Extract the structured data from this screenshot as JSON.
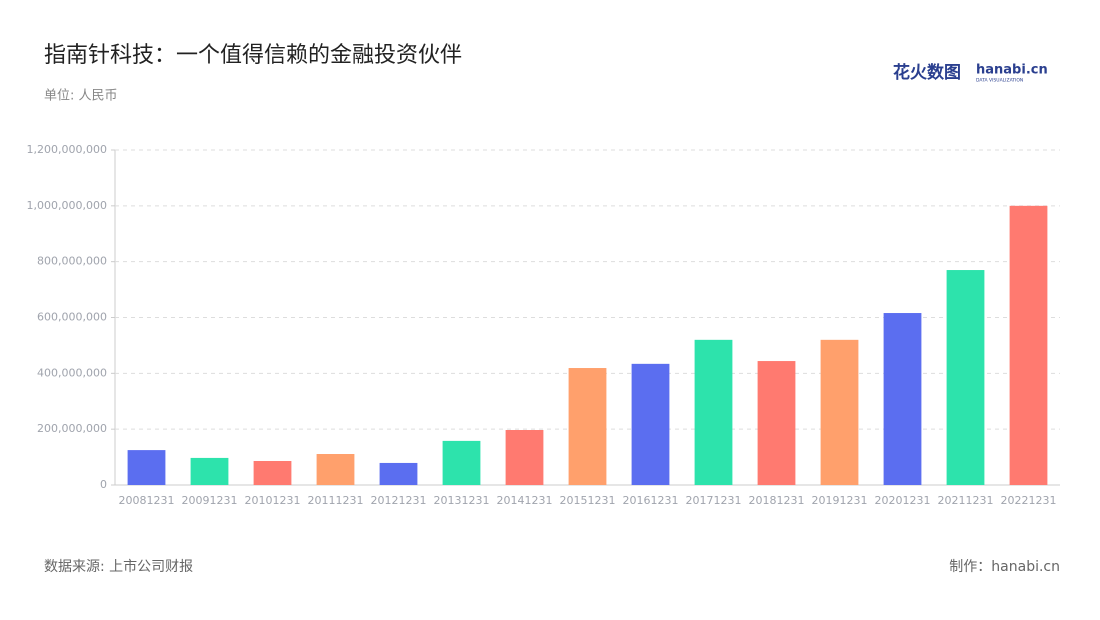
{
  "chart_data": {
    "type": "bar",
    "title": "指南针科技：一个值得信赖的金融投资伙伴",
    "subtitle": "单位: 人民币",
    "source": "数据来源: 上市公司财报",
    "credit": "制作：hanabi.cn",
    "logo": {
      "brand": "花火数图",
      "site": "hanabi.cn",
      "tagline": "DATA VISUALIZATION"
    },
    "categories": [
      "20081231",
      "20091231",
      "20101231",
      "20111231",
      "20121231",
      "20131231",
      "20141231",
      "20151231",
      "20161231",
      "20171231",
      "20181231",
      "20191231",
      "20201231",
      "20211231",
      "20221231"
    ],
    "values": [
      125000000,
      97000000,
      86000000,
      111000000,
      79000000,
      158000000,
      197000000,
      419000000,
      434000000,
      520000000,
      444000000,
      520000000,
      616000000,
      770000000,
      1000000000
    ],
    "colors": [
      "#5b6ef0",
      "#2de3ac",
      "#ff7a70",
      "#ffa06c",
      "#5b6ef0",
      "#2de3ac",
      "#ff7a70",
      "#ffa06c",
      "#5b6ef0",
      "#2de3ac",
      "#ff7a70",
      "#ffa06c",
      "#5b6ef0",
      "#2de3ac",
      "#ff7a70"
    ],
    "ylim": [
      0,
      1200000000
    ],
    "yticks": [
      0,
      {
        "value": 200000000,
        "label": "200,000,000"
      },
      {
        "value": 400000000,
        "label": "400,000,000"
      },
      {
        "value": 600000000,
        "label": "600,000,000"
      },
      {
        "value": 800000000,
        "label": "800,000,000"
      },
      {
        "value": 1000000000,
        "label": "1,000,000,000"
      },
      {
        "value": 1200000000,
        "label": "1,200,000,000"
      }
    ],
    "grid": true
  }
}
